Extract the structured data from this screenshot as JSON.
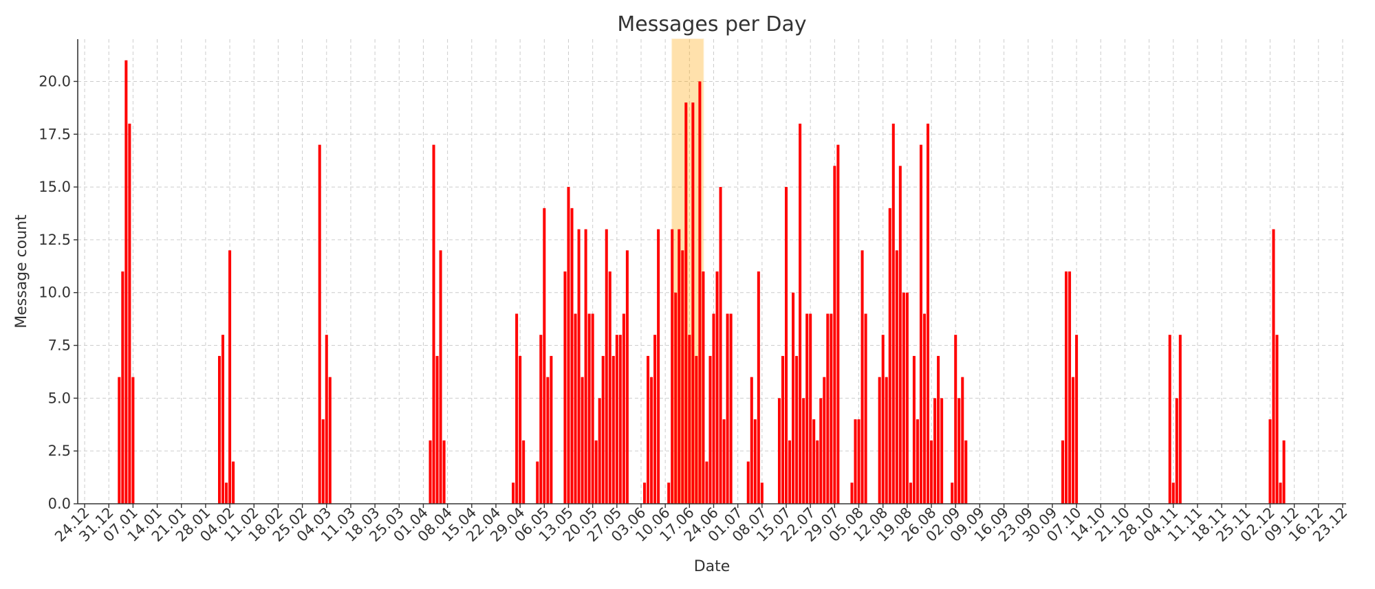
{
  "chart_data": {
    "type": "bar",
    "title": "Messages per Day",
    "xlabel": "Date",
    "ylabel": "Message count",
    "x_range": [
      "2022-12-22",
      "2023-12-24"
    ],
    "ylim": [
      0,
      22
    ],
    "y_ticks": [
      "0.0",
      "2.5",
      "5.0",
      "7.5",
      "10.0",
      "12.5",
      "15.0",
      "17.5",
      "20.0"
    ],
    "x_ticks": [
      {
        "date": "2022-12-24",
        "label": "24.12"
      },
      {
        "date": "2022-12-31",
        "label": "31.12"
      },
      {
        "date": "2023-01-07",
        "label": "07.01"
      },
      {
        "date": "2023-01-14",
        "label": "14.01"
      },
      {
        "date": "2023-01-21",
        "label": "21.01"
      },
      {
        "date": "2023-01-28",
        "label": "28.01"
      },
      {
        "date": "2023-02-04",
        "label": "04.02"
      },
      {
        "date": "2023-02-11",
        "label": "11.02"
      },
      {
        "date": "2023-02-18",
        "label": "18.02"
      },
      {
        "date": "2023-02-25",
        "label": "25.02"
      },
      {
        "date": "2023-03-04",
        "label": "04.03"
      },
      {
        "date": "2023-03-11",
        "label": "11.03"
      },
      {
        "date": "2023-03-18",
        "label": "18.03"
      },
      {
        "date": "2023-03-25",
        "label": "25.03"
      },
      {
        "date": "2023-04-01",
        "label": "01.04"
      },
      {
        "date": "2023-04-08",
        "label": "08.04"
      },
      {
        "date": "2023-04-15",
        "label": "15.04"
      },
      {
        "date": "2023-04-22",
        "label": "22.04"
      },
      {
        "date": "2023-04-29",
        "label": "29.04"
      },
      {
        "date": "2023-05-06",
        "label": "06.05"
      },
      {
        "date": "2023-05-13",
        "label": "13.05"
      },
      {
        "date": "2023-05-20",
        "label": "20.05"
      },
      {
        "date": "2023-05-27",
        "label": "27.05"
      },
      {
        "date": "2023-06-03",
        "label": "03.06"
      },
      {
        "date": "2023-06-10",
        "label": "10.06"
      },
      {
        "date": "2023-06-17",
        "label": "17.06"
      },
      {
        "date": "2023-06-24",
        "label": "24.06"
      },
      {
        "date": "2023-07-01",
        "label": "01.07"
      },
      {
        "date": "2023-07-08",
        "label": "08.07"
      },
      {
        "date": "2023-07-15",
        "label": "15.07"
      },
      {
        "date": "2023-07-22",
        "label": "22.07"
      },
      {
        "date": "2023-07-29",
        "label": "29.07"
      },
      {
        "date": "2023-08-05",
        "label": "05.08"
      },
      {
        "date": "2023-08-12",
        "label": "12.08"
      },
      {
        "date": "2023-08-19",
        "label": "19.08"
      },
      {
        "date": "2023-08-26",
        "label": "26.08"
      },
      {
        "date": "2023-09-02",
        "label": "02.09"
      },
      {
        "date": "2023-09-09",
        "label": "09.09"
      },
      {
        "date": "2023-09-16",
        "label": "16.09"
      },
      {
        "date": "2023-09-23",
        "label": "23.09"
      },
      {
        "date": "2023-09-30",
        "label": "30.09"
      },
      {
        "date": "2023-10-07",
        "label": "07.10"
      },
      {
        "date": "2023-10-14",
        "label": "14.10"
      },
      {
        "date": "2023-10-21",
        "label": "21.10"
      },
      {
        "date": "2023-10-28",
        "label": "28.10"
      },
      {
        "date": "2023-11-04",
        "label": "04.11"
      },
      {
        "date": "2023-11-11",
        "label": "11.11"
      },
      {
        "date": "2023-11-18",
        "label": "18.11"
      },
      {
        "date": "2023-11-25",
        "label": "25.11"
      },
      {
        "date": "2023-12-02",
        "label": "02.12"
      },
      {
        "date": "2023-12-09",
        "label": "09.12"
      },
      {
        "date": "2023-12-16",
        "label": "16.12"
      },
      {
        "date": "2023-12-23",
        "label": "23.12"
      }
    ],
    "highlight_range": [
      "2023-06-12",
      "2023-06-21"
    ],
    "grid": true,
    "colors": {
      "bar": "#ff0000",
      "highlight": "#ffa500"
    },
    "series": [
      {
        "values": [
          {
            "date": "2023-01-03",
            "value": 6
          },
          {
            "date": "2023-01-04",
            "value": 11
          },
          {
            "date": "2023-01-05",
            "value": 21
          },
          {
            "date": "2023-01-06",
            "value": 18
          },
          {
            "date": "2023-01-07",
            "value": 6
          },
          {
            "date": "2023-02-01",
            "value": 7
          },
          {
            "date": "2023-02-02",
            "value": 8
          },
          {
            "date": "2023-02-03",
            "value": 1
          },
          {
            "date": "2023-02-04",
            "value": 12
          },
          {
            "date": "2023-02-05",
            "value": 2
          },
          {
            "date": "2023-03-02",
            "value": 17
          },
          {
            "date": "2023-03-03",
            "value": 4
          },
          {
            "date": "2023-03-04",
            "value": 8
          },
          {
            "date": "2023-03-05",
            "value": 6
          },
          {
            "date": "2023-04-03",
            "value": 3
          },
          {
            "date": "2023-04-04",
            "value": 17
          },
          {
            "date": "2023-04-05",
            "value": 7
          },
          {
            "date": "2023-04-06",
            "value": 12
          },
          {
            "date": "2023-04-07",
            "value": 3
          },
          {
            "date": "2023-04-27",
            "value": 1
          },
          {
            "date": "2023-04-28",
            "value": 9
          },
          {
            "date": "2023-04-29",
            "value": 7
          },
          {
            "date": "2023-04-30",
            "value": 3
          },
          {
            "date": "2023-05-04",
            "value": 2
          },
          {
            "date": "2023-05-05",
            "value": 8
          },
          {
            "date": "2023-05-06",
            "value": 14
          },
          {
            "date": "2023-05-07",
            "value": 6
          },
          {
            "date": "2023-05-08",
            "value": 7
          },
          {
            "date": "2023-05-12",
            "value": 11
          },
          {
            "date": "2023-05-13",
            "value": 15
          },
          {
            "date": "2023-05-14",
            "value": 14
          },
          {
            "date": "2023-05-15",
            "value": 9
          },
          {
            "date": "2023-05-16",
            "value": 13
          },
          {
            "date": "2023-05-17",
            "value": 6
          },
          {
            "date": "2023-05-18",
            "value": 13
          },
          {
            "date": "2023-05-19",
            "value": 9
          },
          {
            "date": "2023-05-20",
            "value": 9
          },
          {
            "date": "2023-05-21",
            "value": 3
          },
          {
            "date": "2023-05-22",
            "value": 5
          },
          {
            "date": "2023-05-23",
            "value": 7
          },
          {
            "date": "2023-05-24",
            "value": 13
          },
          {
            "date": "2023-05-25",
            "value": 11
          },
          {
            "date": "2023-05-26",
            "value": 7
          },
          {
            "date": "2023-05-27",
            "value": 8
          },
          {
            "date": "2023-05-28",
            "value": 8
          },
          {
            "date": "2023-05-29",
            "value": 9
          },
          {
            "date": "2023-05-30",
            "value": 12
          },
          {
            "date": "2023-06-04",
            "value": 1
          },
          {
            "date": "2023-06-05",
            "value": 7
          },
          {
            "date": "2023-06-06",
            "value": 6
          },
          {
            "date": "2023-06-07",
            "value": 8
          },
          {
            "date": "2023-06-08",
            "value": 13
          },
          {
            "date": "2023-06-11",
            "value": 1
          },
          {
            "date": "2023-06-12",
            "value": 13
          },
          {
            "date": "2023-06-13",
            "value": 10
          },
          {
            "date": "2023-06-14",
            "value": 13
          },
          {
            "date": "2023-06-15",
            "value": 12
          },
          {
            "date": "2023-06-16",
            "value": 19
          },
          {
            "date": "2023-06-17",
            "value": 8
          },
          {
            "date": "2023-06-18",
            "value": 19
          },
          {
            "date": "2023-06-19",
            "value": 7
          },
          {
            "date": "2023-06-20",
            "value": 20
          },
          {
            "date": "2023-06-21",
            "value": 11
          },
          {
            "date": "2023-06-22",
            "value": 2
          },
          {
            "date": "2023-06-23",
            "value": 7
          },
          {
            "date": "2023-06-24",
            "value": 9
          },
          {
            "date": "2023-06-25",
            "value": 11
          },
          {
            "date": "2023-06-26",
            "value": 15
          },
          {
            "date": "2023-06-27",
            "value": 4
          },
          {
            "date": "2023-06-28",
            "value": 9
          },
          {
            "date": "2023-06-29",
            "value": 9
          },
          {
            "date": "2023-07-04",
            "value": 2
          },
          {
            "date": "2023-07-05",
            "value": 6
          },
          {
            "date": "2023-07-06",
            "value": 4
          },
          {
            "date": "2023-07-07",
            "value": 11
          },
          {
            "date": "2023-07-08",
            "value": 1
          },
          {
            "date": "2023-07-13",
            "value": 5
          },
          {
            "date": "2023-07-14",
            "value": 7
          },
          {
            "date": "2023-07-15",
            "value": 15
          },
          {
            "date": "2023-07-16",
            "value": 3
          },
          {
            "date": "2023-07-17",
            "value": 10
          },
          {
            "date": "2023-07-18",
            "value": 7
          },
          {
            "date": "2023-07-19",
            "value": 18
          },
          {
            "date": "2023-07-20",
            "value": 5
          },
          {
            "date": "2023-07-21",
            "value": 9
          },
          {
            "date": "2023-07-22",
            "value": 9
          },
          {
            "date": "2023-07-23",
            "value": 4
          },
          {
            "date": "2023-07-24",
            "value": 3
          },
          {
            "date": "2023-07-25",
            "value": 5
          },
          {
            "date": "2023-07-26",
            "value": 6
          },
          {
            "date": "2023-07-27",
            "value": 9
          },
          {
            "date": "2023-07-28",
            "value": 9
          },
          {
            "date": "2023-07-29",
            "value": 16
          },
          {
            "date": "2023-07-30",
            "value": 17
          },
          {
            "date": "2023-08-03",
            "value": 1
          },
          {
            "date": "2023-08-04",
            "value": 4
          },
          {
            "date": "2023-08-05",
            "value": 4
          },
          {
            "date": "2023-08-06",
            "value": 12
          },
          {
            "date": "2023-08-07",
            "value": 9
          },
          {
            "date": "2023-08-11",
            "value": 6
          },
          {
            "date": "2023-08-12",
            "value": 8
          },
          {
            "date": "2023-08-13",
            "value": 6
          },
          {
            "date": "2023-08-14",
            "value": 14
          },
          {
            "date": "2023-08-15",
            "value": 18
          },
          {
            "date": "2023-08-16",
            "value": 12
          },
          {
            "date": "2023-08-17",
            "value": 16
          },
          {
            "date": "2023-08-18",
            "value": 10
          },
          {
            "date": "2023-08-19",
            "value": 10
          },
          {
            "date": "2023-08-20",
            "value": 1
          },
          {
            "date": "2023-08-21",
            "value": 7
          },
          {
            "date": "2023-08-22",
            "value": 4
          },
          {
            "date": "2023-08-23",
            "value": 17
          },
          {
            "date": "2023-08-24",
            "value": 9
          },
          {
            "date": "2023-08-25",
            "value": 18
          },
          {
            "date": "2023-08-26",
            "value": 3
          },
          {
            "date": "2023-08-27",
            "value": 5
          },
          {
            "date": "2023-08-28",
            "value": 7
          },
          {
            "date": "2023-08-29",
            "value": 5
          },
          {
            "date": "2023-09-01",
            "value": 1
          },
          {
            "date": "2023-09-02",
            "value": 8
          },
          {
            "date": "2023-09-03",
            "value": 5
          },
          {
            "date": "2023-09-04",
            "value": 6
          },
          {
            "date": "2023-09-05",
            "value": 3
          },
          {
            "date": "2023-10-03",
            "value": 3
          },
          {
            "date": "2023-10-04",
            "value": 11
          },
          {
            "date": "2023-10-05",
            "value": 11
          },
          {
            "date": "2023-10-06",
            "value": 6
          },
          {
            "date": "2023-10-07",
            "value": 8
          },
          {
            "date": "2023-11-03",
            "value": 8
          },
          {
            "date": "2023-11-04",
            "value": 1
          },
          {
            "date": "2023-11-05",
            "value": 5
          },
          {
            "date": "2023-11-06",
            "value": 8
          },
          {
            "date": "2023-12-02",
            "value": 4
          },
          {
            "date": "2023-12-03",
            "value": 13
          },
          {
            "date": "2023-12-04",
            "value": 8
          },
          {
            "date": "2023-12-05",
            "value": 1
          },
          {
            "date": "2023-12-06",
            "value": 3
          }
        ]
      }
    ]
  }
}
